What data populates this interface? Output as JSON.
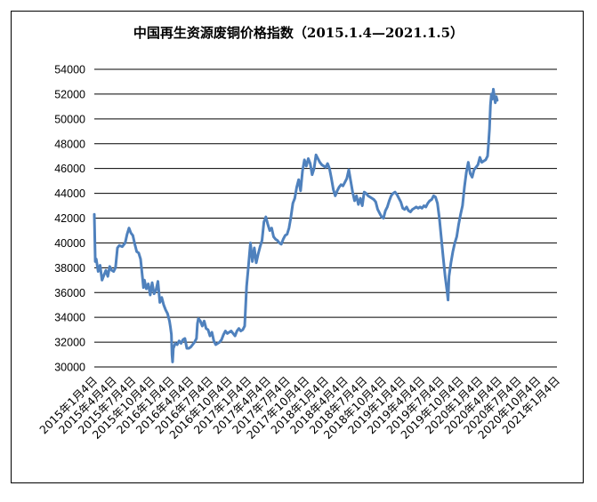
{
  "chart_data": {
    "type": "line",
    "title": "中国再生资源废铜价格指数（2015.1.4—2021.1.5）",
    "ylim": [
      30000,
      54000
    ],
    "y_ticks": [
      "30000",
      "32000",
      "34000",
      "36000",
      "38000",
      "40000",
      "42000",
      "44000",
      "46000",
      "48000",
      "50000",
      "52000",
      "54000"
    ],
    "categories": [
      "2015年1月4日",
      "2015年4月4日",
      "2015年7月4日",
      "2015年10月4日",
      "2016年1月4日",
      "2016年4月4日",
      "2016年7月4日",
      "2016年10月4日",
      "2017年1月4日",
      "2017年4月4日",
      "2017年7月4日",
      "2017年10月4日",
      "2018年1月4日",
      "2018年4月4日",
      "2018年7月4日",
      "2018年10月4日",
      "2019年1月4日",
      "2019年4月4日",
      "2019年7月4日",
      "2019年10月4日",
      "2020年1月4日",
      "2020年4月4日",
      "2020年7月4日",
      "2020年10月4日",
      "2021年1月4日"
    ],
    "grid": true,
    "legend": "none",
    "series": [
      {
        "color": "#4F81BD",
        "points": [
          [
            0,
            42300
          ],
          [
            0.05,
            38500
          ],
          [
            0.1,
            38700
          ],
          [
            0.2,
            37700
          ],
          [
            0.3,
            38200
          ],
          [
            0.4,
            37000
          ],
          [
            0.5,
            37400
          ],
          [
            0.6,
            37800
          ],
          [
            0.7,
            37300
          ],
          [
            0.8,
            38100
          ],
          [
            0.9,
            37800
          ],
          [
            1.0,
            37700
          ],
          [
            1.1,
            38000
          ],
          [
            1.2,
            39600
          ],
          [
            1.3,
            39800
          ],
          [
            1.45,
            39700
          ],
          [
            1.6,
            40000
          ],
          [
            1.7,
            40700
          ],
          [
            1.8,
            41200
          ],
          [
            1.9,
            40800
          ],
          [
            2.0,
            40600
          ],
          [
            2.1,
            39900
          ],
          [
            2.2,
            39300
          ],
          [
            2.3,
            39200
          ],
          [
            2.4,
            38700
          ],
          [
            2.5,
            37200
          ],
          [
            2.55,
            36400
          ],
          [
            2.6,
            37000
          ],
          [
            2.7,
            36300
          ],
          [
            2.8,
            36700
          ],
          [
            2.9,
            35800
          ],
          [
            3.0,
            36800
          ],
          [
            3.1,
            35900
          ],
          [
            3.2,
            36200
          ],
          [
            3.3,
            36900
          ],
          [
            3.4,
            35200
          ],
          [
            3.5,
            35600
          ],
          [
            3.6,
            35000
          ],
          [
            3.7,
            34600
          ],
          [
            3.8,
            34300
          ],
          [
            3.9,
            33700
          ],
          [
            3.95,
            33200
          ],
          [
            4.0,
            32600
          ],
          [
            4.03,
            31000
          ],
          [
            4.06,
            30400
          ],
          [
            4.1,
            31500
          ],
          [
            4.2,
            31900
          ],
          [
            4.3,
            31800
          ],
          [
            4.4,
            32100
          ],
          [
            4.5,
            31900
          ],
          [
            4.6,
            32200
          ],
          [
            4.7,
            32300
          ],
          [
            4.8,
            31500
          ],
          [
            4.9,
            31500
          ],
          [
            5.0,
            31600
          ],
          [
            5.1,
            31800
          ],
          [
            5.2,
            32000
          ],
          [
            5.3,
            32300
          ],
          [
            5.35,
            33500
          ],
          [
            5.4,
            33900
          ],
          [
            5.5,
            33700
          ],
          [
            5.6,
            33300
          ],
          [
            5.7,
            33700
          ],
          [
            5.8,
            33100
          ],
          [
            5.9,
            33000
          ],
          [
            6.0,
            32500
          ],
          [
            6.1,
            32800
          ],
          [
            6.2,
            32100
          ],
          [
            6.3,
            31800
          ],
          [
            6.4,
            31900
          ],
          [
            6.5,
            32000
          ],
          [
            6.6,
            32200
          ],
          [
            6.7,
            32600
          ],
          [
            6.8,
            32900
          ],
          [
            6.9,
            32700
          ],
          [
            7.0,
            32800
          ],
          [
            7.1,
            32900
          ],
          [
            7.2,
            32700
          ],
          [
            7.3,
            32500
          ],
          [
            7.4,
            32900
          ],
          [
            7.5,
            33100
          ],
          [
            7.6,
            32900
          ],
          [
            7.7,
            33000
          ],
          [
            7.8,
            33300
          ],
          [
            7.9,
            36500
          ],
          [
            8.0,
            38200
          ],
          [
            8.1,
            40000
          ],
          [
            8.2,
            38500
          ],
          [
            8.3,
            39600
          ],
          [
            8.4,
            38400
          ],
          [
            8.5,
            39100
          ],
          [
            8.6,
            39700
          ],
          [
            8.7,
            40200
          ],
          [
            8.8,
            41700
          ],
          [
            8.9,
            42100
          ],
          [
            9.0,
            41500
          ],
          [
            9.1,
            41000
          ],
          [
            9.2,
            41200
          ],
          [
            9.3,
            40500
          ],
          [
            9.4,
            40300
          ],
          [
            9.5,
            40200
          ],
          [
            9.6,
            40000
          ],
          [
            9.7,
            39900
          ],
          [
            9.8,
            40300
          ],
          [
            9.9,
            40600
          ],
          [
            10.0,
            40700
          ],
          [
            10.1,
            41200
          ],
          [
            10.2,
            42100
          ],
          [
            10.3,
            43200
          ],
          [
            10.4,
            43600
          ],
          [
            10.5,
            44500
          ],
          [
            10.6,
            45100
          ],
          [
            10.7,
            44200
          ],
          [
            10.8,
            45800
          ],
          [
            10.9,
            46700
          ],
          [
            11.0,
            46200
          ],
          [
            11.1,
            46800
          ],
          [
            11.2,
            46400
          ],
          [
            11.3,
            45500
          ],
          [
            11.4,
            46000
          ],
          [
            11.5,
            47100
          ],
          [
            11.6,
            46800
          ],
          [
            11.7,
            46500
          ],
          [
            11.8,
            46300
          ],
          [
            11.9,
            46200
          ],
          [
            12.0,
            46100
          ],
          [
            12.1,
            46400
          ],
          [
            12.2,
            46000
          ],
          [
            12.3,
            45200
          ],
          [
            12.4,
            44300
          ],
          [
            12.5,
            43800
          ],
          [
            12.6,
            44200
          ],
          [
            12.7,
            44500
          ],
          [
            12.8,
            44700
          ],
          [
            12.9,
            44600
          ],
          [
            13.0,
            44900
          ],
          [
            13.1,
            45200
          ],
          [
            13.2,
            45900
          ],
          [
            13.3,
            45000
          ],
          [
            13.4,
            44100
          ],
          [
            13.5,
            43400
          ],
          [
            13.6,
            43800
          ],
          [
            13.7,
            43100
          ],
          [
            13.8,
            43600
          ],
          [
            13.9,
            43000
          ],
          [
            14.0,
            44100
          ],
          [
            14.1,
            44000
          ],
          [
            14.2,
            43800
          ],
          [
            14.3,
            43700
          ],
          [
            14.4,
            43600
          ],
          [
            14.5,
            43500
          ],
          [
            14.6,
            43300
          ],
          [
            14.7,
            42700
          ],
          [
            14.8,
            42400
          ],
          [
            14.9,
            42100
          ],
          [
            15.0,
            42000
          ],
          [
            15.1,
            42600
          ],
          [
            15.2,
            42900
          ],
          [
            15.3,
            43400
          ],
          [
            15.4,
            43800
          ],
          [
            15.5,
            44000
          ],
          [
            15.6,
            44100
          ],
          [
            15.7,
            43900
          ],
          [
            15.8,
            43600
          ],
          [
            15.9,
            43300
          ],
          [
            16.0,
            42800
          ],
          [
            16.1,
            42700
          ],
          [
            16.2,
            42900
          ],
          [
            16.3,
            42600
          ],
          [
            16.4,
            42500
          ],
          [
            16.5,
            42700
          ],
          [
            16.6,
            42800
          ],
          [
            16.7,
            42900
          ],
          [
            16.8,
            42800
          ],
          [
            16.9,
            42900
          ],
          [
            17.0,
            42800
          ],
          [
            17.1,
            43000
          ],
          [
            17.2,
            42900
          ],
          [
            17.3,
            43200
          ],
          [
            17.4,
            43400
          ],
          [
            17.5,
            43500
          ],
          [
            17.6,
            43800
          ],
          [
            17.7,
            43700
          ],
          [
            17.8,
            43200
          ],
          [
            17.9,
            42000
          ],
          [
            18.0,
            40400
          ],
          [
            18.1,
            38800
          ],
          [
            18.2,
            37300
          ],
          [
            18.3,
            36100
          ],
          [
            18.35,
            35400
          ],
          [
            18.4,
            37300
          ],
          [
            18.5,
            38400
          ],
          [
            18.6,
            39300
          ],
          [
            18.7,
            40000
          ],
          [
            18.8,
            40500
          ],
          [
            18.9,
            41500
          ],
          [
            19.0,
            42300
          ],
          [
            19.1,
            43000
          ],
          [
            19.2,
            44500
          ],
          [
            19.3,
            45700
          ],
          [
            19.4,
            46500
          ],
          [
            19.5,
            45600
          ],
          [
            19.6,
            45300
          ],
          [
            19.7,
            45900
          ],
          [
            19.8,
            46100
          ],
          [
            19.9,
            46300
          ],
          [
            20.0,
            46900
          ],
          [
            20.1,
            46500
          ],
          [
            20.2,
            46600
          ],
          [
            20.3,
            46700
          ],
          [
            20.4,
            47000
          ],
          [
            20.45,
            48000
          ],
          [
            20.5,
            49200
          ],
          [
            20.55,
            51100
          ],
          [
            20.6,
            52000
          ],
          [
            20.65,
            51600
          ],
          [
            20.7,
            52400
          ],
          [
            20.75,
            51800
          ],
          [
            20.8,
            51300
          ],
          [
            20.85,
            51800
          ],
          [
            20.9,
            51500
          ]
        ]
      }
    ]
  }
}
